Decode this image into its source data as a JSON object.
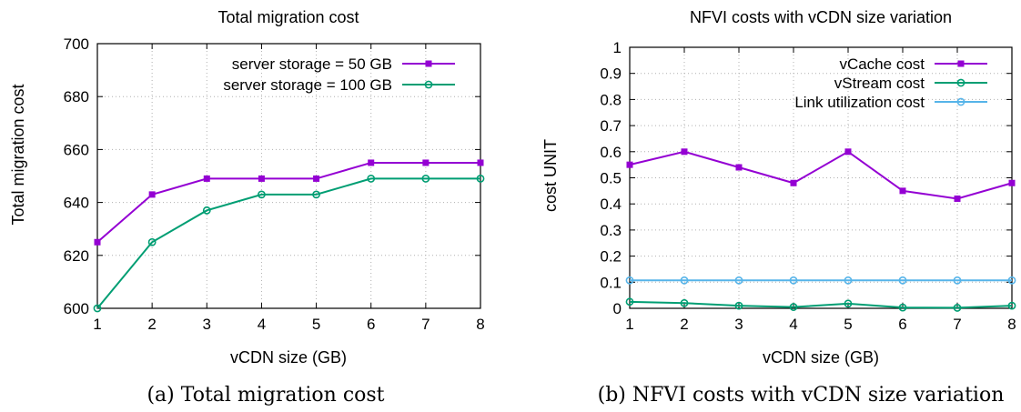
{
  "colors": {
    "purple": "#9400d3",
    "green": "#009e73",
    "blue": "#56b4e9",
    "grid": "#b0b0b0"
  },
  "chart_data": [
    {
      "type": "line",
      "title": "Total migration cost",
      "xlabel": "vCDN size (GB)",
      "ylabel": "Total migration cost",
      "x": [
        1,
        2,
        3,
        4,
        5,
        6,
        7,
        8
      ],
      "xlim": [
        1,
        8
      ],
      "ylim": [
        600,
        700
      ],
      "xticks": [
        "1",
        "2",
        "3",
        "4",
        "5",
        "6",
        "7",
        "8"
      ],
      "yticks": [
        "600",
        "620",
        "640",
        "660",
        "680",
        "700"
      ],
      "grid": true,
      "legend": "top-right",
      "caption": "(a) Total migration cost",
      "series": [
        {
          "name": "server storage = 50 GB",
          "marker": "square",
          "color": "#9400d3",
          "values": [
            625,
            643,
            649,
            649,
            649,
            655,
            655,
            655
          ]
        },
        {
          "name": "server storage = 100 GB",
          "marker": "circle",
          "color": "#009e73",
          "values": [
            600,
            625,
            637,
            643,
            643,
            649,
            649,
            649
          ]
        }
      ]
    },
    {
      "type": "line",
      "title": "NFVI costs with vCDN size variation",
      "xlabel": "vCDN size (GB)",
      "ylabel": "cost UNIT",
      "x": [
        1,
        2,
        3,
        4,
        5,
        6,
        7,
        8
      ],
      "xlim": [
        1,
        8
      ],
      "ylim": [
        0,
        1
      ],
      "xticks": [
        "1",
        "2",
        "3",
        "4",
        "5",
        "6",
        "7",
        "8"
      ],
      "yticks": [
        "0",
        "0.1",
        "0.2",
        "0.3",
        "0.4",
        "0.5",
        "0.6",
        "0.7",
        "0.8",
        "0.9",
        "1"
      ],
      "grid": true,
      "legend": "top-right",
      "caption": "(b) NFVI costs with vCDN size variation",
      "series": [
        {
          "name": "vCache cost",
          "marker": "square",
          "color": "#9400d3",
          "values": [
            0.55,
            0.6,
            0.54,
            0.48,
            0.6,
            0.45,
            0.42,
            0.48
          ]
        },
        {
          "name": "vStream cost",
          "marker": "circle",
          "color": "#009e73",
          "values": [
            0.025,
            0.02,
            0.01,
            0.005,
            0.018,
            0.003,
            0.002,
            0.01
          ]
        },
        {
          "name": "Link utilization cost",
          "marker": "circle",
          "color": "#56b4e9",
          "values": [
            0.107,
            0.107,
            0.107,
            0.107,
            0.107,
            0.107,
            0.107,
            0.107
          ]
        }
      ]
    }
  ]
}
